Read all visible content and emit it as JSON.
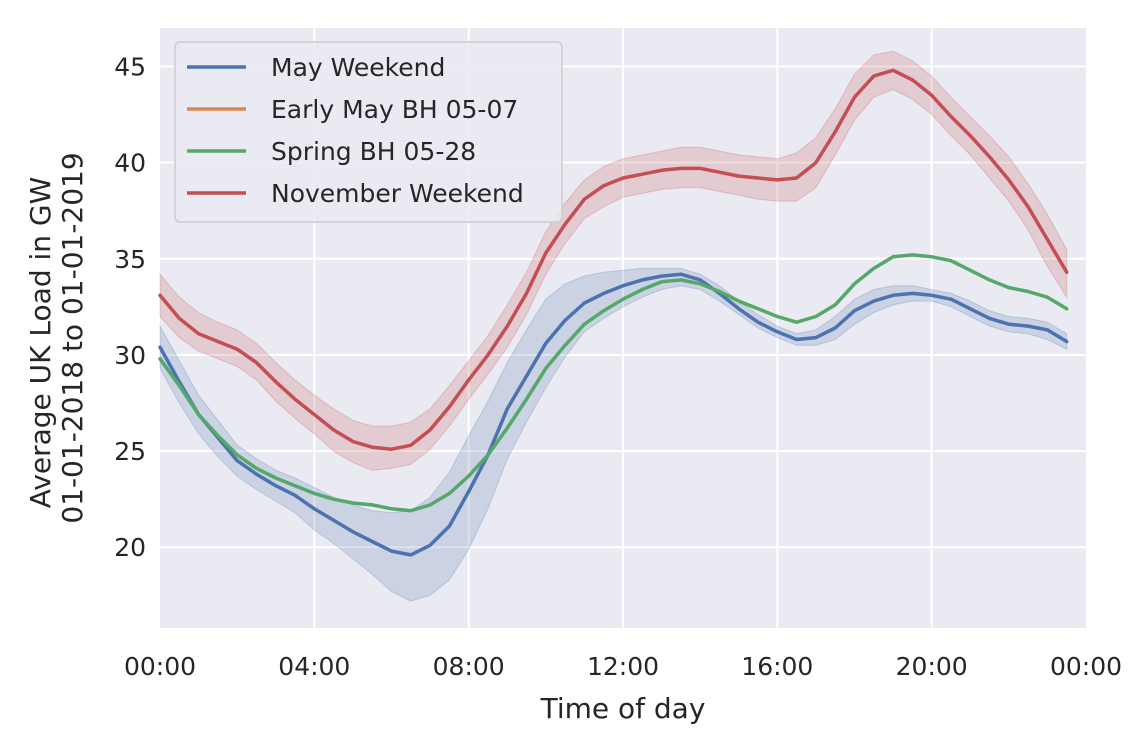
{
  "chart_data": {
    "type": "line",
    "xlabel": "Time of day",
    "ylabel": [
      "Average UK Load in GW",
      "01-01-2018 to 01-01-2019"
    ],
    "xlim": [
      0,
      24
    ],
    "ylim": [
      15.8,
      47.0
    ],
    "xticks": [
      {
        "value": 0,
        "label": "00:00"
      },
      {
        "value": 4,
        "label": "04:00"
      },
      {
        "value": 8,
        "label": "08:00"
      },
      {
        "value": 12,
        "label": "12:00"
      },
      {
        "value": 16,
        "label": "16:00"
      },
      {
        "value": 20,
        "label": "20:00"
      },
      {
        "value": 24,
        "label": "00:00"
      }
    ],
    "yticks": [
      {
        "value": 20,
        "label": "20"
      },
      {
        "value": 25,
        "label": "25"
      },
      {
        "value": 30,
        "label": "30"
      },
      {
        "value": 35,
        "label": "35"
      },
      {
        "value": 40,
        "label": "40"
      },
      {
        "value": 45,
        "label": "45"
      }
    ],
    "grid": true,
    "legend_position": "top-left",
    "series": [
      {
        "name": "May Weekend",
        "color": "#4c72b0",
        "x": [
          0,
          0.5,
          1,
          1.5,
          2,
          2.5,
          3,
          3.5,
          4,
          4.5,
          5,
          5.5,
          6,
          6.5,
          7,
          7.5,
          8,
          8.5,
          9,
          9.5,
          10,
          10.5,
          11,
          11.5,
          12,
          12.5,
          13,
          13.5,
          14,
          14.5,
          15,
          15.5,
          16,
          16.5,
          17,
          17.5,
          18,
          18.5,
          19,
          19.5,
          20,
          20.5,
          21,
          21.5,
          22,
          22.5,
          23,
          23.5
        ],
        "values": [
          30.4,
          28.6,
          26.9,
          25.7,
          24.5,
          23.8,
          23.2,
          22.7,
          22.0,
          21.4,
          20.8,
          20.3,
          19.8,
          19.6,
          20.1,
          21.1,
          22.9,
          24.8,
          27.2,
          28.9,
          30.6,
          31.8,
          32.7,
          33.2,
          33.6,
          33.9,
          34.1,
          34.2,
          33.9,
          33.2,
          32.4,
          31.7,
          31.2,
          30.8,
          30.9,
          31.4,
          32.3,
          32.8,
          33.1,
          33.2,
          33.1,
          32.9,
          32.4,
          31.9,
          31.6,
          31.5,
          31.3,
          30.7
        ],
        "ci_low": [
          29.3,
          27.5,
          25.9,
          24.7,
          23.7,
          23.0,
          22.4,
          21.8,
          20.9,
          20.2,
          19.4,
          18.6,
          17.7,
          17.2,
          17.5,
          18.3,
          19.9,
          22.0,
          24.6,
          26.5,
          28.3,
          29.9,
          31.2,
          31.9,
          32.5,
          33.0,
          33.4,
          33.6,
          33.4,
          32.8,
          32.1,
          31.4,
          30.9,
          30.5,
          30.5,
          30.8,
          31.6,
          32.2,
          32.6,
          32.8,
          32.8,
          32.5,
          32.0,
          31.5,
          31.2,
          31.1,
          30.8,
          30.3
        ],
        "ci_high": [
          31.5,
          29.7,
          27.9,
          26.6,
          25.3,
          24.6,
          24.0,
          23.6,
          23.1,
          22.6,
          22.2,
          21.9,
          21.8,
          21.9,
          22.6,
          23.9,
          25.8,
          27.6,
          29.6,
          31.3,
          32.9,
          33.7,
          34.1,
          34.3,
          34.4,
          34.5,
          34.5,
          34.5,
          34.2,
          33.6,
          32.8,
          32.1,
          31.5,
          31.1,
          31.3,
          32.0,
          32.9,
          33.4,
          33.6,
          33.6,
          33.4,
          33.2,
          32.8,
          32.3,
          32.0,
          31.9,
          31.7,
          31.1
        ]
      },
      {
        "name": "Early May BH 05-07",
        "color": "#dd8452",
        "x": [],
        "values": []
      },
      {
        "name": "Spring BH 05-28",
        "color": "#55a868",
        "x": [
          0,
          0.5,
          1,
          1.5,
          2,
          2.5,
          3,
          3.5,
          4,
          4.5,
          5,
          5.5,
          6,
          6.5,
          7,
          7.5,
          8,
          8.5,
          9,
          9.5,
          10,
          10.5,
          11,
          11.5,
          12,
          12.5,
          13,
          13.5,
          14,
          14.5,
          15,
          15.5,
          16,
          16.5,
          17,
          17.5,
          18,
          18.5,
          19,
          19.5,
          20,
          20.5,
          21,
          21.5,
          22,
          22.5,
          23,
          23.5
        ],
        "values": [
          29.8,
          28.4,
          26.9,
          25.8,
          24.8,
          24.1,
          23.6,
          23.2,
          22.8,
          22.5,
          22.3,
          22.2,
          22.0,
          21.9,
          22.2,
          22.8,
          23.7,
          24.8,
          26.2,
          27.7,
          29.3,
          30.5,
          31.6,
          32.3,
          32.9,
          33.4,
          33.8,
          33.9,
          33.7,
          33.3,
          32.8,
          32.4,
          32.0,
          31.7,
          32.0,
          32.6,
          33.7,
          34.5,
          35.1,
          35.2,
          35.1,
          34.9,
          34.4,
          33.9,
          33.5,
          33.3,
          33.0,
          32.4
        ]
      },
      {
        "name": "November Weekend",
        "color": "#c44e52",
        "x": [
          0,
          0.5,
          1,
          1.5,
          2,
          2.5,
          3,
          3.5,
          4,
          4.5,
          5,
          5.5,
          6,
          6.5,
          7,
          7.5,
          8,
          8.5,
          9,
          9.5,
          10,
          10.5,
          11,
          11.5,
          12,
          12.5,
          13,
          13.5,
          14,
          14.5,
          15,
          15.5,
          16,
          16.5,
          17,
          17.5,
          18,
          18.5,
          19,
          19.5,
          20,
          20.5,
          21,
          21.5,
          22,
          22.5,
          23,
          23.5
        ],
        "values": [
          33.1,
          31.9,
          31.1,
          30.7,
          30.3,
          29.6,
          28.6,
          27.7,
          26.9,
          26.1,
          25.5,
          25.2,
          25.1,
          25.3,
          26.1,
          27.3,
          28.7,
          30.0,
          31.5,
          33.2,
          35.3,
          36.8,
          38.1,
          38.8,
          39.2,
          39.4,
          39.6,
          39.7,
          39.7,
          39.5,
          39.3,
          39.2,
          39.1,
          39.2,
          40.0,
          41.6,
          43.4,
          44.5,
          44.8,
          44.3,
          43.5,
          42.4,
          41.4,
          40.3,
          39.1,
          37.7,
          36.0,
          34.3
        ],
        "ci_low": [
          32.0,
          30.9,
          30.2,
          29.8,
          29.4,
          28.7,
          27.6,
          26.7,
          25.9,
          25.0,
          24.4,
          24.0,
          24.1,
          24.3,
          25.1,
          26.3,
          27.7,
          29.0,
          30.4,
          32.1,
          34.2,
          35.8,
          37.1,
          37.7,
          38.2,
          38.4,
          38.6,
          38.7,
          38.7,
          38.5,
          38.3,
          38.1,
          38.0,
          38.0,
          38.7,
          40.4,
          42.2,
          43.4,
          43.8,
          43.3,
          42.5,
          41.4,
          40.4,
          39.2,
          38.0,
          36.5,
          34.6,
          33.0
        ],
        "ci_high": [
          34.2,
          33.0,
          32.2,
          31.7,
          31.3,
          30.6,
          29.6,
          28.7,
          27.9,
          27.2,
          26.6,
          26.3,
          26.3,
          26.5,
          27.2,
          28.4,
          29.7,
          31.0,
          32.6,
          34.3,
          36.4,
          37.9,
          39.1,
          39.8,
          40.2,
          40.4,
          40.6,
          40.8,
          40.8,
          40.6,
          40.4,
          40.3,
          40.2,
          40.5,
          41.3,
          42.8,
          44.6,
          45.6,
          45.8,
          45.3,
          44.5,
          43.4,
          42.4,
          41.4,
          40.3,
          38.9,
          37.3,
          35.5
        ]
      }
    ]
  }
}
